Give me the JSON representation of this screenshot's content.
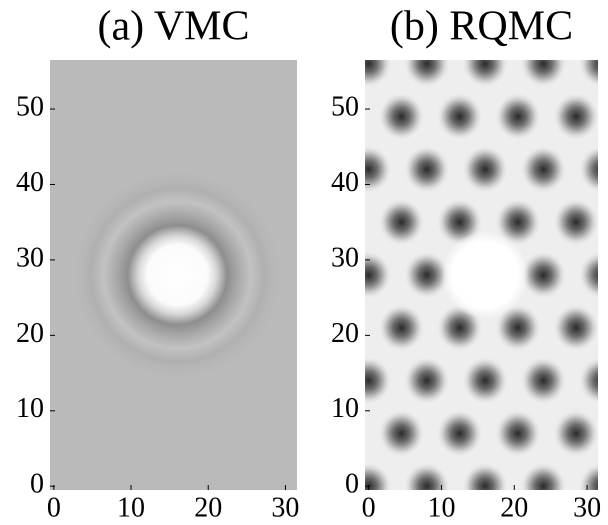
{
  "chart_data": [
    {
      "type": "heatmap",
      "title": "(a) VMC",
      "xlim": [
        -0.5,
        31.5
      ],
      "ylim": [
        -0.5,
        56.5
      ],
      "xticks": [
        0,
        10,
        20,
        30
      ],
      "yticks": [
        0,
        10,
        20,
        30,
        40,
        50
      ]
    },
    {
      "type": "heatmap",
      "title": "(b) RQMC",
      "xlim": [
        -0.5,
        31.5
      ],
      "ylim": [
        -0.5,
        56.5
      ],
      "xticks": [
        0,
        10,
        20,
        30
      ],
      "yticks": [
        0,
        10,
        20,
        30,
        40,
        50
      ]
    }
  ]
}
